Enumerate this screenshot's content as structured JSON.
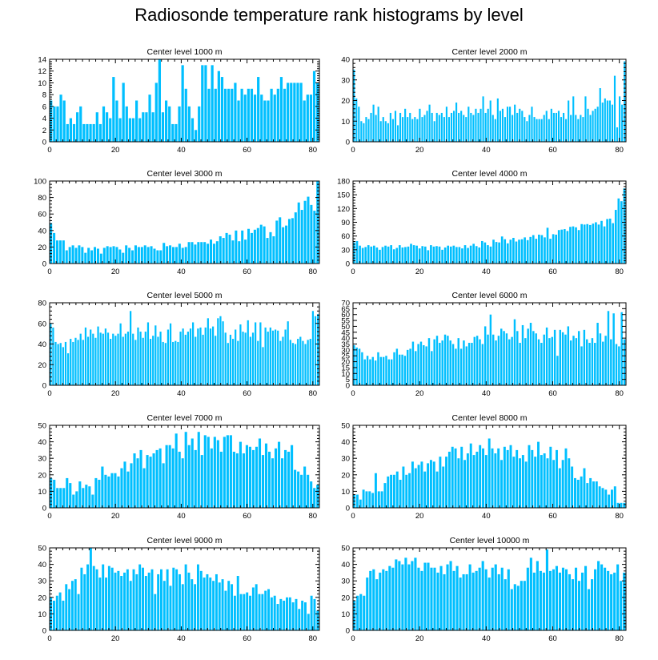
{
  "title": "Radiosonde temperature rank histograms by level",
  "colors": {
    "bar": "#00bfff",
    "axis": "#000000",
    "background": "#ffffff"
  },
  "chart_data": [
    {
      "type": "bar",
      "title": "Center level 1000 m",
      "xlabel": "",
      "ylabel": "",
      "xlim": [
        0,
        82
      ],
      "ylim": [
        0,
        14
      ],
      "xticks": [
        0,
        20,
        40,
        60,
        80
      ],
      "yticks": [
        0,
        2,
        4,
        6,
        8,
        10,
        12,
        14
      ],
      "values": [
        7,
        6,
        6,
        8,
        7,
        3,
        4,
        3,
        5,
        6,
        3,
        3,
        3,
        3,
        5,
        3,
        6,
        5,
        4,
        11,
        7,
        4,
        10,
        6,
        4,
        4,
        7,
        4,
        5,
        5,
        8,
        5,
        10,
        14,
        5,
        7,
        6,
        3,
        3,
        6,
        13,
        9,
        6,
        4,
        2,
        6,
        13,
        13,
        9,
        13,
        9,
        12,
        11,
        9,
        9,
        9,
        10,
        7,
        9,
        8,
        9,
        9,
        8,
        11,
        8,
        7,
        7,
        9,
        8,
        9,
        11,
        9,
        10,
        10,
        10,
        10,
        10,
        7,
        8,
        8,
        12,
        10
      ]
    },
    {
      "type": "bar",
      "title": "Center level 2000 m",
      "xlabel": "",
      "ylabel": "",
      "xlim": [
        0,
        82
      ],
      "ylim": [
        0,
        40
      ],
      "xticks": [
        0,
        20,
        40,
        60,
        80
      ],
      "yticks": [
        0,
        10,
        20,
        30,
        40
      ],
      "values": [
        35,
        21,
        17,
        10,
        9,
        12,
        11,
        14,
        18,
        13,
        17,
        10,
        12,
        10,
        9,
        14,
        11,
        15,
        8,
        14,
        12,
        16,
        12,
        14,
        11,
        12,
        11,
        16,
        12,
        13,
        15,
        18,
        14,
        10,
        14,
        13,
        14,
        12,
        17,
        12,
        14,
        15,
        19,
        14,
        15,
        13,
        12,
        17,
        14,
        13,
        16,
        14,
        16,
        22,
        14,
        16,
        20,
        13,
        11,
        21,
        15,
        16,
        12,
        17,
        17,
        13,
        18,
        14,
        16,
        15,
        12,
        10,
        13,
        17,
        12,
        11,
        11,
        11,
        13,
        15,
        11,
        16,
        14,
        14,
        15,
        12,
        14,
        11,
        20,
        13,
        22,
        13,
        11,
        13,
        12,
        22,
        16,
        13,
        15,
        16,
        17,
        26,
        19,
        21,
        20,
        20,
        18,
        32,
        7,
        22,
        18,
        39
      ]
    },
    {
      "type": "bar",
      "title": "Center level 3000 m",
      "xlabel": "",
      "ylabel": "",
      "xlim": [
        0,
        82
      ],
      "ylim": [
        0,
        100
      ],
      "xticks": [
        0,
        20,
        40,
        60,
        80
      ],
      "yticks": [
        0,
        20,
        40,
        60,
        80,
        100
      ],
      "values": [
        49,
        37,
        28,
        28,
        28,
        16,
        20,
        22,
        19,
        22,
        20,
        13,
        19,
        16,
        20,
        18,
        12,
        19,
        21,
        20,
        21,
        20,
        17,
        13,
        22,
        19,
        16,
        22,
        20,
        20,
        22,
        20,
        21,
        18,
        16,
        16,
        25,
        21,
        22,
        20,
        20,
        24,
        19,
        20,
        26,
        26,
        23,
        26,
        26,
        26,
        24,
        29,
        24,
        27,
        33,
        31,
        37,
        35,
        28,
        40,
        27,
        40,
        29,
        42,
        37,
        41,
        43,
        47,
        45,
        31,
        38,
        33,
        52,
        56,
        44,
        46,
        54,
        55,
        62,
        74,
        65,
        76,
        81,
        71,
        64,
        100
      ]
    },
    {
      "type": "bar",
      "title": "Center level 4000 m",
      "xlabel": "",
      "ylabel": "",
      "xlim": [
        0,
        82
      ],
      "ylim": [
        0,
        180
      ],
      "xticks": [
        0,
        20,
        40,
        60,
        80
      ],
      "yticks": [
        0,
        30,
        60,
        90,
        120,
        150,
        180
      ],
      "values": [
        46,
        49,
        39,
        34,
        36,
        40,
        37,
        39,
        35,
        30,
        36,
        39,
        37,
        40,
        31,
        34,
        40,
        35,
        36,
        37,
        43,
        40,
        39,
        33,
        38,
        37,
        29,
        40,
        37,
        38,
        37,
        30,
        35,
        39,
        37,
        39,
        36,
        36,
        33,
        40,
        34,
        39,
        43,
        38,
        35,
        49,
        46,
        40,
        37,
        52,
        47,
        46,
        59,
        53,
        44,
        52,
        56,
        48,
        52,
        53,
        57,
        51,
        58,
        62,
        54,
        63,
        62,
        57,
        78,
        54,
        64,
        63,
        73,
        74,
        75,
        71,
        80,
        81,
        79,
        73,
        86,
        85,
        86,
        84,
        87,
        90,
        85,
        93,
        81,
        97,
        98,
        88,
        117,
        142,
        136,
        164
      ]
    },
    {
      "type": "bar",
      "title": "Center level 5000 m",
      "xlabel": "",
      "ylabel": "",
      "xlim": [
        0,
        82
      ],
      "ylim": [
        0,
        80
      ],
      "xticks": [
        0,
        20,
        40,
        60,
        80
      ],
      "yticks": [
        0,
        20,
        40,
        60,
        80
      ],
      "values": [
        60,
        56,
        42,
        40,
        41,
        37,
        42,
        31,
        45,
        42,
        46,
        44,
        50,
        44,
        56,
        47,
        54,
        50,
        46,
        57,
        51,
        50,
        55,
        51,
        45,
        50,
        48,
        50,
        60,
        47,
        50,
        52,
        72,
        50,
        44,
        56,
        52,
        46,
        52,
        61,
        45,
        48,
        58,
        47,
        52,
        42,
        41,
        54,
        60,
        42,
        43,
        42,
        52,
        55,
        49,
        52,
        55,
        61,
        47,
        55,
        56,
        49,
        56,
        65,
        55,
        57,
        48,
        65,
        67,
        62,
        51,
        41,
        49,
        45,
        54,
        43,
        59,
        52,
        51,
        63,
        47,
        51,
        61,
        43,
        61,
        37,
        56,
        52,
        56,
        53,
        54,
        53,
        43,
        47,
        54,
        62,
        44,
        41,
        40,
        45,
        47,
        43,
        40,
        44,
        45,
        72,
        67,
        69
      ]
    },
    {
      "type": "bar",
      "title": "Center level 6000 m",
      "xlabel": "",
      "ylabel": "",
      "xlim": [
        0,
        82
      ],
      "ylim": [
        0,
        70
      ],
      "xticks": [
        0,
        20,
        40,
        60,
        80
      ],
      "yticks": [
        0,
        5,
        10,
        15,
        20,
        25,
        30,
        35,
        40,
        45,
        50,
        55,
        60,
        65,
        70
      ],
      "values": [
        34,
        32,
        31,
        28,
        22,
        25,
        22,
        24,
        21,
        28,
        24,
        24,
        25,
        22,
        22,
        28,
        31,
        26,
        26,
        25,
        30,
        31,
        37,
        29,
        35,
        37,
        34,
        33,
        40,
        29,
        39,
        42,
        36,
        38,
        43,
        42,
        38,
        35,
        31,
        40,
        31,
        38,
        33,
        36,
        36,
        41,
        42,
        39,
        35,
        50,
        43,
        60,
        43,
        38,
        42,
        48,
        46,
        44,
        39,
        41,
        56,
        46,
        36,
        51,
        40,
        48,
        53,
        46,
        44,
        39,
        36,
        43,
        49,
        40,
        41,
        47,
        25,
        47,
        45,
        43,
        50,
        38,
        42,
        40,
        46,
        33,
        47,
        39,
        36,
        40,
        36,
        53,
        44,
        37,
        42,
        63,
        39,
        61,
        35,
        33,
        62,
        39
      ]
    },
    {
      "type": "bar",
      "title": "Center level 7000 m",
      "xlabel": "",
      "ylabel": "",
      "xlim": [
        0,
        82
      ],
      "ylim": [
        0,
        50
      ],
      "xticks": [
        0,
        20,
        40,
        60,
        80
      ],
      "yticks": [
        0,
        10,
        20,
        30,
        40,
        50
      ],
      "values": [
        18,
        17,
        12,
        12,
        12,
        18,
        15,
        8,
        10,
        16,
        12,
        14,
        13,
        8,
        18,
        17,
        25,
        20,
        19,
        21,
        21,
        19,
        24,
        28,
        22,
        27,
        33,
        30,
        35,
        24,
        32,
        31,
        33,
        35,
        36,
        27,
        38,
        38,
        36,
        45,
        34,
        30,
        46,
        38,
        42,
        35,
        46,
        32,
        44,
        43,
        36,
        43,
        41,
        34,
        43,
        44,
        44,
        34,
        33,
        40,
        33,
        38,
        37,
        35,
        37,
        42,
        32,
        39,
        34,
        30,
        36,
        40,
        30,
        35,
        34,
        38,
        23,
        22,
        20,
        25,
        20,
        16,
        12,
        14
      ]
    },
    {
      "type": "bar",
      "title": "Center level 8000 m",
      "xlabel": "",
      "ylabel": "",
      "xlim": [
        0,
        82
      ],
      "ylim": [
        0,
        50
      ],
      "xticks": [
        0,
        20,
        40,
        60,
        80
      ],
      "yticks": [
        0,
        10,
        20,
        30,
        40,
        50
      ],
      "values": [
        8,
        8,
        5,
        11,
        10,
        10,
        9,
        21,
        10,
        10,
        15,
        19,
        20,
        20,
        22,
        17,
        25,
        20,
        21,
        28,
        24,
        26,
        28,
        22,
        27,
        29,
        28,
        22,
        31,
        25,
        31,
        34,
        37,
        36,
        30,
        37,
        29,
        33,
        39,
        32,
        34,
        38,
        36,
        32,
        42,
        36,
        33,
        36,
        29,
        37,
        35,
        38,
        31,
        35,
        30,
        32,
        28,
        38,
        35,
        31,
        40,
        32,
        33,
        30,
        37,
        29,
        35,
        24,
        29,
        36,
        30,
        25,
        18,
        17,
        19,
        24,
        15,
        18,
        16,
        16,
        13,
        12,
        11,
        8,
        11,
        13,
        3,
        3,
        3
      ]
    },
    {
      "type": "bar",
      "title": "Center level 9000 m",
      "xlabel": "",
      "ylabel": "",
      "xlim": [
        0,
        82
      ],
      "ylim": [
        0,
        50
      ],
      "xticks": [
        0,
        20,
        40,
        60,
        80
      ],
      "yticks": [
        0,
        10,
        20,
        30,
        40,
        50
      ],
      "values": [
        20,
        18,
        21,
        23,
        18,
        28,
        25,
        30,
        31,
        22,
        38,
        34,
        40,
        50,
        39,
        37,
        32,
        40,
        32,
        39,
        38,
        35,
        36,
        33,
        35,
        37,
        30,
        37,
        34,
        40,
        38,
        33,
        35,
        37,
        22,
        34,
        37,
        30,
        37,
        27,
        38,
        37,
        34,
        28,
        40,
        35,
        31,
        28,
        40,
        36,
        32,
        34,
        32,
        30,
        34,
        29,
        31,
        24,
        30,
        28,
        21,
        33,
        22,
        22,
        23,
        21,
        26,
        28,
        22,
        22,
        24,
        25,
        20,
        21,
        16,
        19,
        18,
        20,
        20,
        17,
        19,
        13,
        18,
        17,
        10,
        21,
        19,
        12
      ]
    },
    {
      "type": "bar",
      "title": "Center level 10000 m",
      "xlabel": "",
      "ylabel": "",
      "xlim": [
        0,
        82
      ],
      "ylim": [
        0,
        50
      ],
      "xticks": [
        0,
        20,
        40,
        60,
        80
      ],
      "yticks": [
        0,
        10,
        20,
        30,
        40,
        50
      ],
      "values": [
        18,
        21,
        22,
        21,
        32,
        36,
        37,
        31,
        35,
        37,
        36,
        39,
        38,
        43,
        42,
        40,
        44,
        40,
        42,
        44,
        38,
        36,
        41,
        41,
        38,
        38,
        35,
        39,
        34,
        40,
        42,
        36,
        39,
        32,
        34,
        34,
        40,
        35,
        36,
        38,
        42,
        37,
        32,
        38,
        40,
        34,
        38,
        31,
        37,
        25,
        28,
        27,
        30,
        30,
        38,
        44,
        35,
        42,
        36,
        35,
        49,
        36,
        37,
        39,
        35,
        38,
        37,
        34,
        31,
        38,
        30,
        35,
        39,
        25,
        31,
        37,
        42,
        40,
        38,
        36,
        34,
        35,
        40,
        30,
        35
      ]
    }
  ]
}
